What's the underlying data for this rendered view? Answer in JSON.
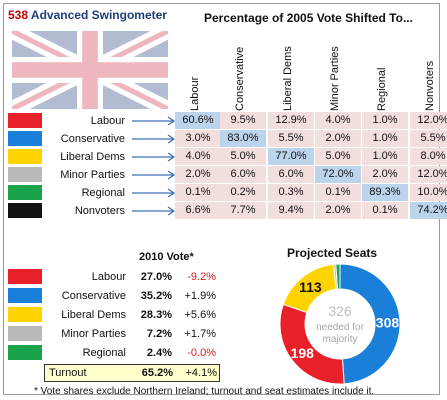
{
  "title": {
    "number": "538",
    "text": "Advanced Swingometer"
  },
  "header": "Percentage of 2005 Vote Shifted To...",
  "columns": [
    "Labour",
    "Conservative",
    "Liberal Dems",
    "Minor Parties",
    "Regional",
    "Nonvoters"
  ],
  "rows": [
    {
      "label": "Labour",
      "color": "#e8202a",
      "values": [
        "60.6%",
        "9.5%",
        "12.9%",
        "4.0%",
        "1.0%",
        "12.0%"
      ]
    },
    {
      "label": "Conservative",
      "color": "#1a7fd8",
      "values": [
        "3.0%",
        "83.0%",
        "5.5%",
        "2.0%",
        "1.0%",
        "5.5%"
      ]
    },
    {
      "label": "Liberal Dems",
      "color": "#ffd200",
      "values": [
        "4.0%",
        "5.0%",
        "77.0%",
        "5.0%",
        "1.0%",
        "8.0%"
      ]
    },
    {
      "label": "Minor Parties",
      "color": "#b9b9b9",
      "values": [
        "2.0%",
        "6.0%",
        "6.0%",
        "72.0%",
        "2.0%",
        "12.0%"
      ]
    },
    {
      "label": "Regional",
      "color": "#1aa34a",
      "values": [
        "0.1%",
        "0.2%",
        "0.3%",
        "0.1%",
        "89.3%",
        "10.0%"
      ]
    },
    {
      "label": "Nonvoters",
      "color": "#111111",
      "values": [
        "6.6%",
        "7.7%",
        "9.4%",
        "2.0%",
        "0.1%",
        "74.2%"
      ]
    }
  ],
  "vote2010": {
    "title": "2010 Vote*",
    "rows": [
      {
        "label": "Labour",
        "share": "27.0%",
        "change": "-9.2%",
        "color": "#e8202a"
      },
      {
        "label": "Conservative",
        "share": "35.2%",
        "change": "+1.9%",
        "color": "#1a7fd8"
      },
      {
        "label": "Liberal Dems",
        "share": "28.3%",
        "change": "+5.6%",
        "color": "#ffd200"
      },
      {
        "label": "Minor Parties",
        "share": "7.2%",
        "change": "+1.7%",
        "color": "#b9b9b9"
      },
      {
        "label": "Regional",
        "share": "2.4%",
        "change": "-0.0%",
        "color": "#1aa34a"
      }
    ],
    "turnout": {
      "label": "Turnout",
      "value": "65.2%",
      "change": "+4.1%"
    }
  },
  "seats": {
    "title": "Projected Seats",
    "needed_number": "326",
    "needed_text": "needed for",
    "needed_text2": "majority",
    "segments": [
      {
        "party": "Conservative",
        "value": 308,
        "color": "#1a7fd8"
      },
      {
        "party": "Labour",
        "value": 198,
        "color": "#e8202a"
      },
      {
        "party": "Liberal Dems",
        "value": 113,
        "color": "#ffd200"
      },
      {
        "party": "Minor Parties",
        "value": 4,
        "color": "#b9b9b9"
      },
      {
        "party": "Regional",
        "value": 7,
        "color": "#1aa34a"
      }
    ]
  },
  "footnote": "* Vote shares exclude Northern Ireland; turnout and seat estimates include it."
}
